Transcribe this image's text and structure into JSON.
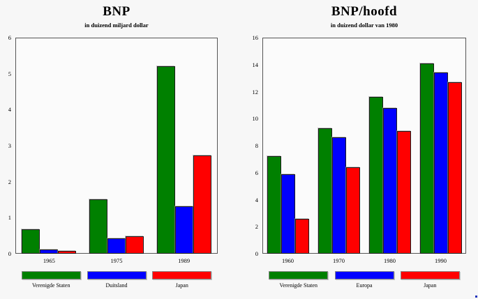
{
  "page": {
    "background_color": "#f7f7f7",
    "plot_background_color": "#fbfbfb",
    "frame_border_color": "#555555"
  },
  "chart_data": [
    {
      "type": "bar",
      "title": "BNP",
      "subtitle": "in duizend miljard dollar",
      "categories": [
        "1965",
        "1975",
        "1989"
      ],
      "series": [
        {
          "name": "Verenigde Staten",
          "color": "#008000",
          "values": [
            0.68,
            1.51,
            5.2
          ]
        },
        {
          "name": "Duitsland",
          "color": "#0000ff",
          "values": [
            0.11,
            0.42,
            1.32
          ]
        },
        {
          "name": "Japan",
          "color": "#ff0000",
          "values": [
            0.08,
            0.49,
            2.72
          ]
        }
      ],
      "xlabel": "",
      "ylabel": "",
      "ylim": [
        0,
        6
      ],
      "yticks": [
        0,
        1,
        2,
        3,
        4,
        5,
        6
      ],
      "grid": false,
      "legend_position": "bottom"
    },
    {
      "type": "bar",
      "title": "BNP/hoofd",
      "subtitle": "in duizend dollar van 1980",
      "categories": [
        "1960",
        "1970",
        "1980",
        "1990"
      ],
      "series": [
        {
          "name": "Verenigde Staten",
          "color": "#008000",
          "values": [
            7.2,
            9.3,
            11.6,
            14.1
          ]
        },
        {
          "name": "Europa",
          "color": "#0000ff",
          "values": [
            5.9,
            8.6,
            10.8,
            13.4
          ]
        },
        {
          "name": "Japan",
          "color": "#ff0000",
          "values": [
            2.6,
            6.4,
            9.1,
            12.7
          ]
        }
      ],
      "xlabel": "",
      "ylabel": "",
      "ylim": [
        0,
        16
      ],
      "yticks": [
        0,
        2,
        4,
        6,
        8,
        10,
        12,
        14,
        16
      ],
      "grid": false,
      "legend_position": "bottom"
    }
  ]
}
